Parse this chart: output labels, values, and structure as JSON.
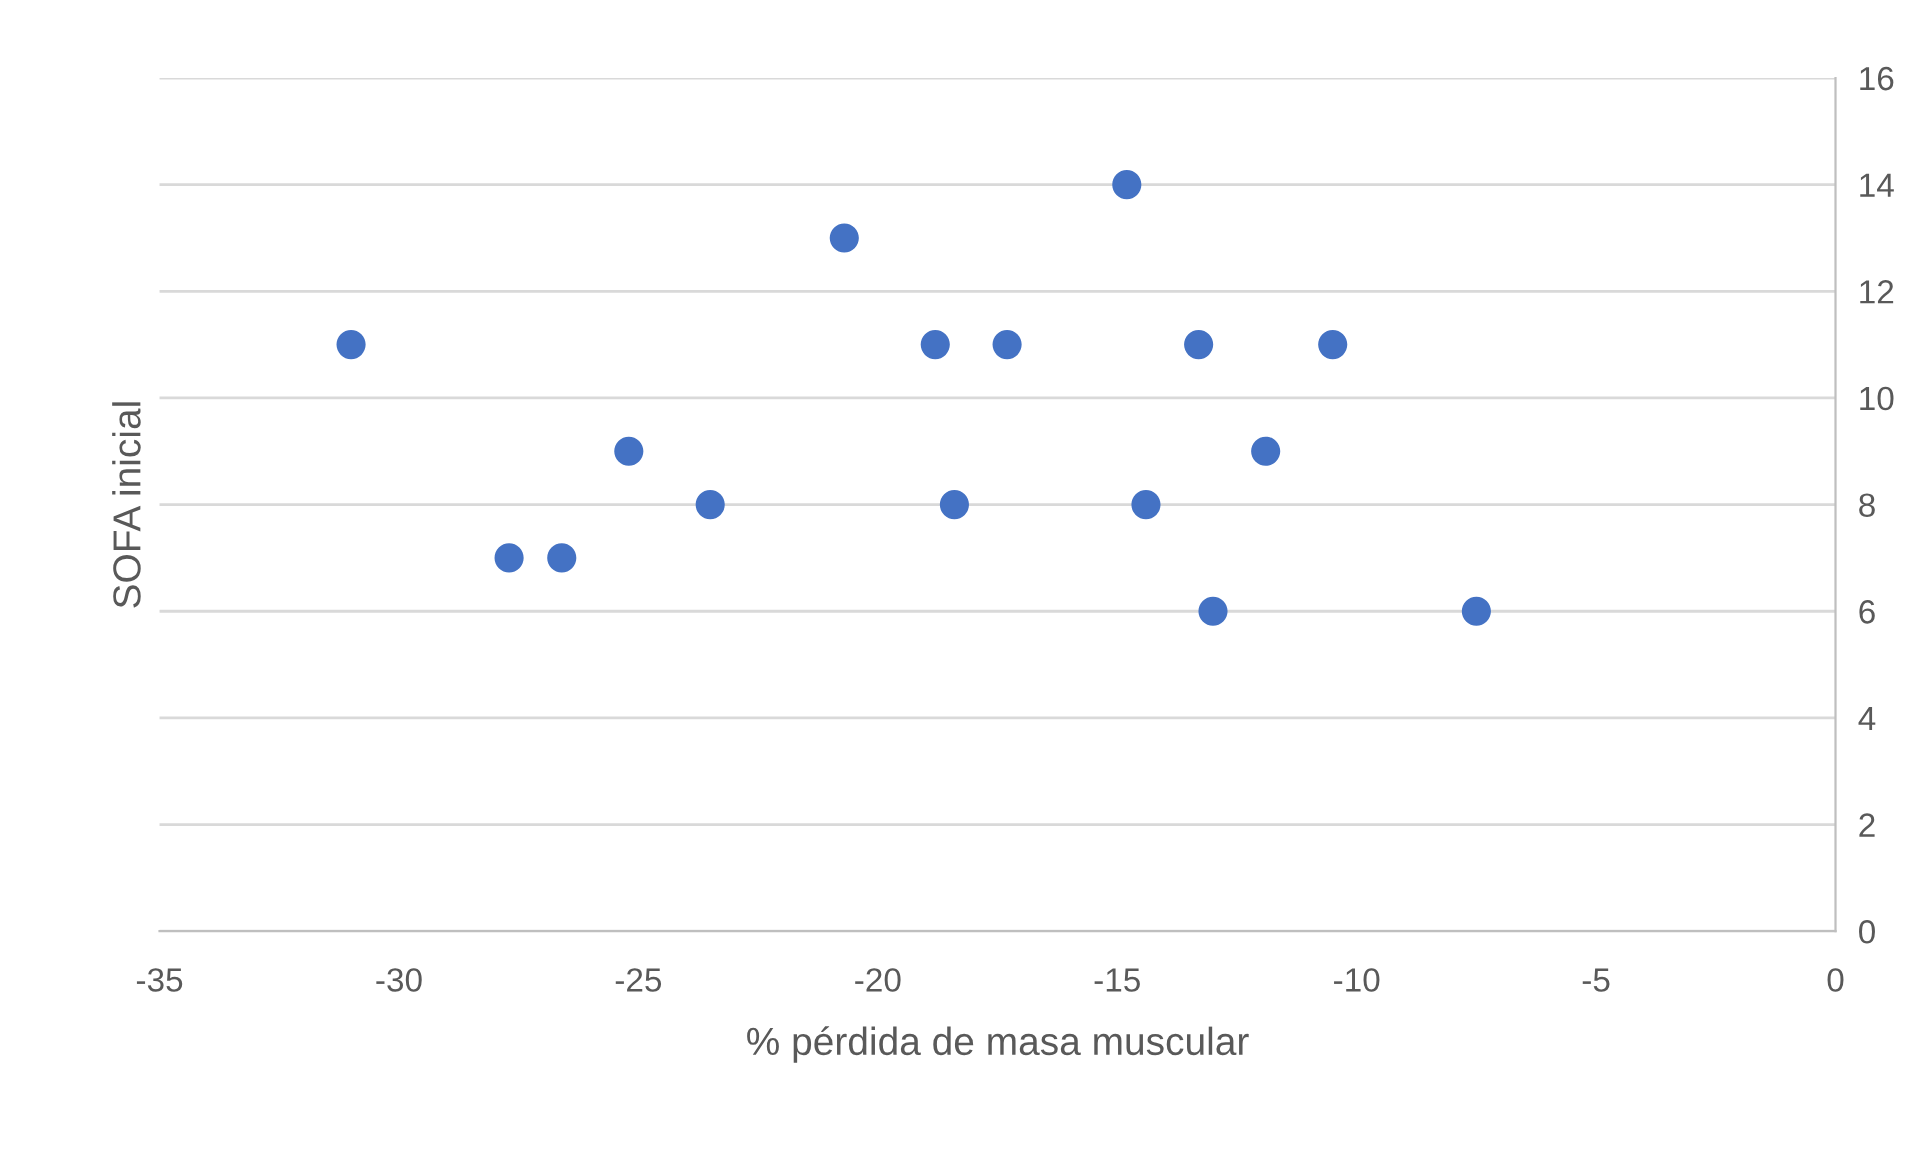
{
  "chart_data": {
    "type": "scatter",
    "xlabel": "% pérdida de masa muscular",
    "ylabel": "SOFA inicial",
    "x": [
      -31.0,
      -27.7,
      -26.6,
      -25.2,
      -23.5,
      -20.7,
      -18.8,
      -18.4,
      -17.3,
      -14.8,
      -14.4,
      -13.3,
      -13.0,
      -11.9,
      -10.5,
      -7.5
    ],
    "series": [
      {
        "color": "#4472c4",
        "values": [
          11,
          7,
          7,
          9,
          8,
          13,
          11,
          8,
          11,
          14,
          8,
          11,
          6,
          9,
          11,
          6
        ]
      }
    ],
    "xlim": [
      -35,
      0
    ],
    "xticks": [
      -35,
      -30,
      -25,
      -20,
      -15,
      -10,
      -5,
      0
    ],
    "ylim": [
      0,
      16
    ],
    "yticks": [
      0,
      2,
      4,
      6,
      8,
      10,
      12,
      14,
      16
    ],
    "grid": "y",
    "marker": "circle"
  }
}
